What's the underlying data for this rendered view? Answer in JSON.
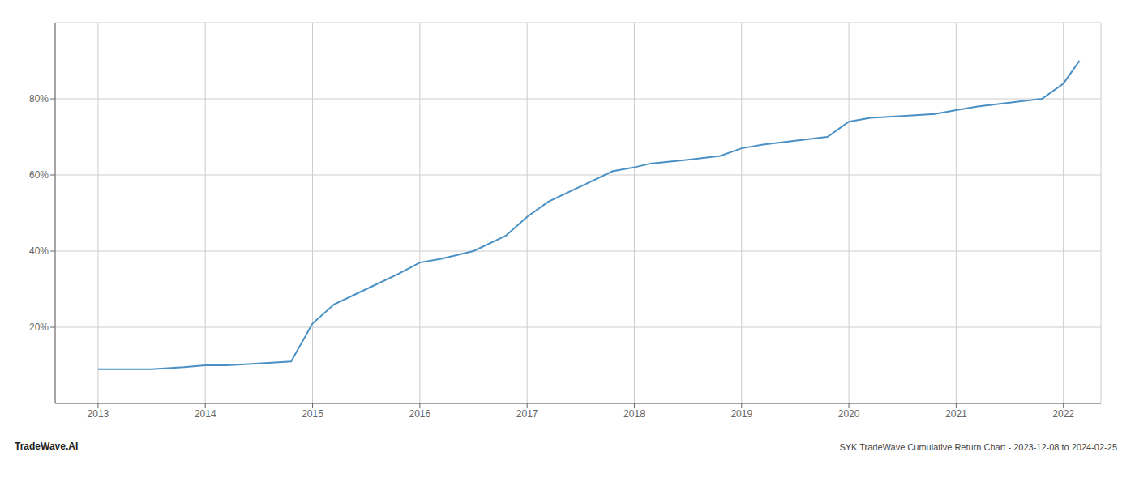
{
  "chart_data": {
    "type": "line",
    "title": "SYK TradeWave Cumulative Return Chart - 2023-12-08 to 2024-02-25",
    "annotations": [
      "TradeWave.AI"
    ],
    "x": [
      2013.0,
      2013.2,
      2013.5,
      2013.8,
      2014.0,
      2014.2,
      2014.5,
      2014.8,
      2015.0,
      2015.2,
      2015.5,
      2015.8,
      2016.0,
      2016.2,
      2016.5,
      2016.8,
      2017.0,
      2017.2,
      2017.5,
      2017.8,
      2018.0,
      2018.15,
      2018.5,
      2018.8,
      2019.0,
      2019.2,
      2019.5,
      2019.8,
      2020.0,
      2020.2,
      2020.5,
      2020.8,
      2021.0,
      2021.2,
      2021.5,
      2021.8,
      2022.0,
      2022.15
    ],
    "values": [
      9,
      9,
      9,
      9.5,
      10,
      10,
      10.5,
      11,
      21,
      26,
      30,
      34,
      37,
      38,
      40,
      44,
      49,
      53,
      57,
      61,
      62,
      63,
      64,
      65,
      67,
      68,
      69,
      70,
      74,
      75,
      75.5,
      76,
      77,
      78,
      79,
      80,
      84,
      90
    ],
    "color": "#4a90c4",
    "xlim": [
      2012.6,
      2022.35
    ],
    "ylim": [
      0,
      100
    ],
    "xticks": [
      2013,
      2014,
      2015,
      2016,
      2017,
      2018,
      2019,
      2020,
      2021,
      2022
    ],
    "yticks": [
      {
        "value": 20,
        "label": "20%"
      },
      {
        "value": 40,
        "label": "40%"
      },
      {
        "value": 60,
        "label": "60%"
      },
      {
        "value": 80,
        "label": "80%"
      }
    ],
    "grid": true
  }
}
